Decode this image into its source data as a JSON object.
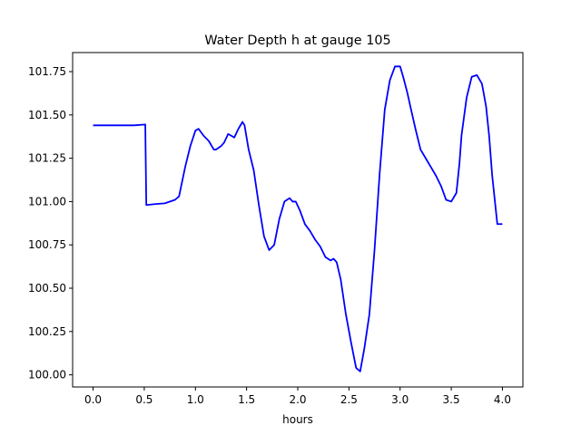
{
  "chart_data": {
    "type": "line",
    "title": "Water Depth h at gauge 105",
    "xlabel": "hours",
    "ylabel": "",
    "xlim": [
      -0.2,
      4.2
    ],
    "ylim": [
      99.93,
      101.86
    ],
    "xticks": [
      0.0,
      0.5,
      1.0,
      1.5,
      2.0,
      2.5,
      3.0,
      3.5,
      4.0
    ],
    "xtick_labels": [
      "0.0",
      "0.5",
      "1.0",
      "1.5",
      "2.0",
      "2.5",
      "3.0",
      "3.5",
      "4.0"
    ],
    "yticks": [
      100.0,
      100.25,
      100.5,
      100.75,
      101.0,
      101.25,
      101.5,
      101.75
    ],
    "ytick_labels": [
      "100.00",
      "100.25",
      "100.50",
      "100.75",
      "101.00",
      "101.25",
      "101.50",
      "101.75"
    ],
    "grid": false,
    "series": [
      {
        "color": "#0000ff",
        "x": [
          0.0,
          0.25,
          0.4,
          0.51,
          0.52,
          0.6,
          0.7,
          0.8,
          0.84,
          0.9,
          0.95,
          1.0,
          1.03,
          1.08,
          1.13,
          1.18,
          1.2,
          1.25,
          1.28,
          1.32,
          1.35,
          1.38,
          1.42,
          1.46,
          1.48,
          1.52,
          1.57,
          1.62,
          1.67,
          1.72,
          1.77,
          1.82,
          1.87,
          1.92,
          1.95,
          1.98,
          2.02,
          2.07,
          2.12,
          2.17,
          2.22,
          2.27,
          2.32,
          2.35,
          2.38,
          2.42,
          2.47,
          2.52,
          2.57,
          2.61,
          2.65,
          2.7,
          2.75,
          2.8,
          2.85,
          2.9,
          2.95,
          3.0,
          3.03,
          3.07,
          3.1,
          3.15,
          3.2,
          3.25,
          3.3,
          3.35,
          3.4,
          3.45,
          3.5,
          3.55,
          3.58,
          3.6,
          3.65,
          3.7,
          3.75,
          3.8,
          3.84,
          3.87,
          3.9,
          3.95,
          4.0
        ],
        "y": [
          101.44,
          101.44,
          101.44,
          101.445,
          100.98,
          100.985,
          100.99,
          101.01,
          101.03,
          101.2,
          101.32,
          101.41,
          101.42,
          101.38,
          101.35,
          101.3,
          101.3,
          101.32,
          101.34,
          101.39,
          101.38,
          101.37,
          101.42,
          101.46,
          101.44,
          101.3,
          101.18,
          100.98,
          100.8,
          100.72,
          100.75,
          100.9,
          101.0,
          101.02,
          101.0,
          101.0,
          100.95,
          100.87,
          100.83,
          100.78,
          100.74,
          100.68,
          100.66,
          100.67,
          100.65,
          100.55,
          100.35,
          100.19,
          100.04,
          100.02,
          100.15,
          100.35,
          100.72,
          101.16,
          101.53,
          101.7,
          101.78,
          101.78,
          101.72,
          101.63,
          101.55,
          101.42,
          101.3,
          101.25,
          101.2,
          101.15,
          101.09,
          101.01,
          101.0,
          101.05,
          101.22,
          101.38,
          101.6,
          101.72,
          101.73,
          101.68,
          101.55,
          101.38,
          101.15,
          100.87,
          100.87
        ]
      }
    ]
  }
}
